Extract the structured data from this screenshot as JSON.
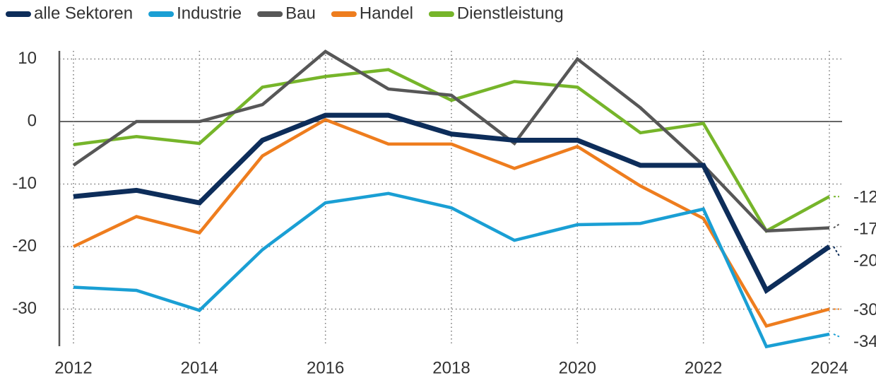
{
  "chart_data": {
    "type": "line",
    "x": [
      2012,
      2013,
      2014,
      2015,
      2016,
      2017,
      2018,
      2019,
      2020,
      2021,
      2022,
      2023,
      2024
    ],
    "series": [
      {
        "name": "alle Sektoren",
        "color": "#0d2d5a",
        "values": [
          -12,
          -11,
          -13,
          -3,
          1,
          1,
          -2,
          -3,
          -3,
          -7,
          -7,
          -27,
          -20
        ]
      },
      {
        "name": "Industrie",
        "color": "#1a9fd4",
        "values": [
          -26.5,
          -27,
          -30.2,
          -20.5,
          -13,
          -11.5,
          -13.8,
          -19,
          -16.5,
          -16.3,
          -14,
          -36,
          -34
        ]
      },
      {
        "name": "Bau",
        "color": "#575757",
        "values": [
          -7,
          0,
          0,
          2.7,
          11.2,
          5.2,
          4.2,
          -3.5,
          10,
          2.2,
          -7,
          -17.5,
          -17
        ]
      },
      {
        "name": "Handel",
        "color": "#ee7d1e",
        "values": [
          -20,
          -15.2,
          -17.8,
          -5.5,
          0.3,
          -3.6,
          -3.6,
          -7.5,
          -4,
          -10.3,
          -15.5,
          -32.7,
          -30
        ]
      },
      {
        "name": "Dienstleistung",
        "color": "#76b52a",
        "values": [
          -3.7,
          -2.4,
          -3.5,
          5.5,
          7.2,
          8.3,
          3.4,
          6.4,
          5.5,
          -1.8,
          -0.3,
          -17.5,
          -12
        ]
      }
    ],
    "xlim": [
      2012,
      2024
    ],
    "xticks": [
      2012,
      2014,
      2016,
      2018,
      2020,
      2022,
      2024
    ],
    "ylim": [
      -36,
      12
    ],
    "yticks": [
      -30,
      -20,
      -10,
      0,
      10
    ],
    "grid": true
  }
}
